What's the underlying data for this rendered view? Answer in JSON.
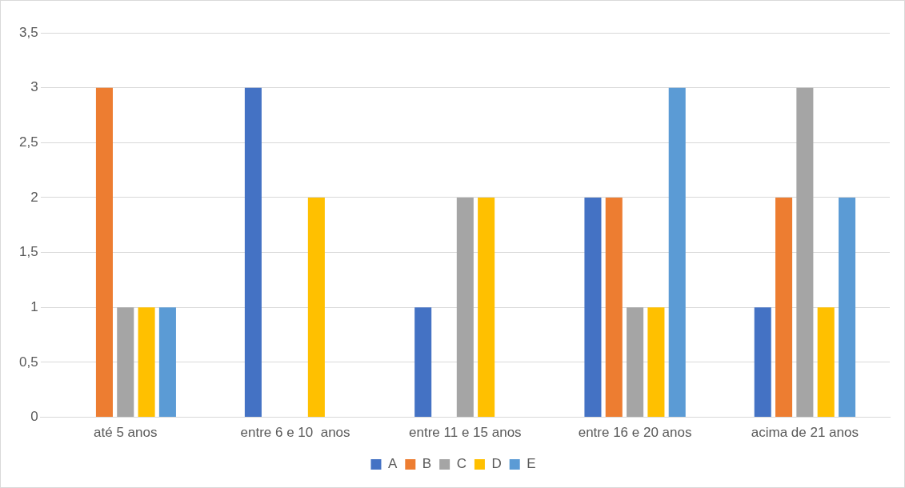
{
  "chart_data": {
    "type": "bar",
    "categories": [
      "até 5 anos",
      "entre 6 e 10  anos",
      "entre 11 e 15 anos",
      "entre 16 e 20 anos",
      "acima de 21 anos"
    ],
    "series": [
      {
        "name": "A",
        "color": "#4472c4",
        "values": [
          0,
          3,
          1,
          2,
          1
        ]
      },
      {
        "name": "B",
        "color": "#ed7d31",
        "values": [
          3,
          0,
          0,
          2,
          2
        ]
      },
      {
        "name": "C",
        "color": "#a5a5a5",
        "values": [
          1,
          0,
          2,
          1,
          3
        ]
      },
      {
        "name": "D",
        "color": "#ffc000",
        "values": [
          1,
          2,
          2,
          1,
          1
        ]
      },
      {
        "name": "E",
        "color": "#5b9bd5",
        "values": [
          1,
          0,
          0,
          3,
          2
        ]
      }
    ],
    "ylim": [
      0,
      3.5
    ],
    "yticks": [
      0,
      {
        "value": 0.5,
        "label": "0,5"
      },
      1,
      {
        "value": 1.5,
        "label": "1,5"
      },
      2,
      {
        "value": 2.5,
        "label": "2,5"
      },
      3,
      {
        "value": 3.5,
        "label": "3,5"
      }
    ],
    "grid": "y",
    "legend": "bottom"
  }
}
